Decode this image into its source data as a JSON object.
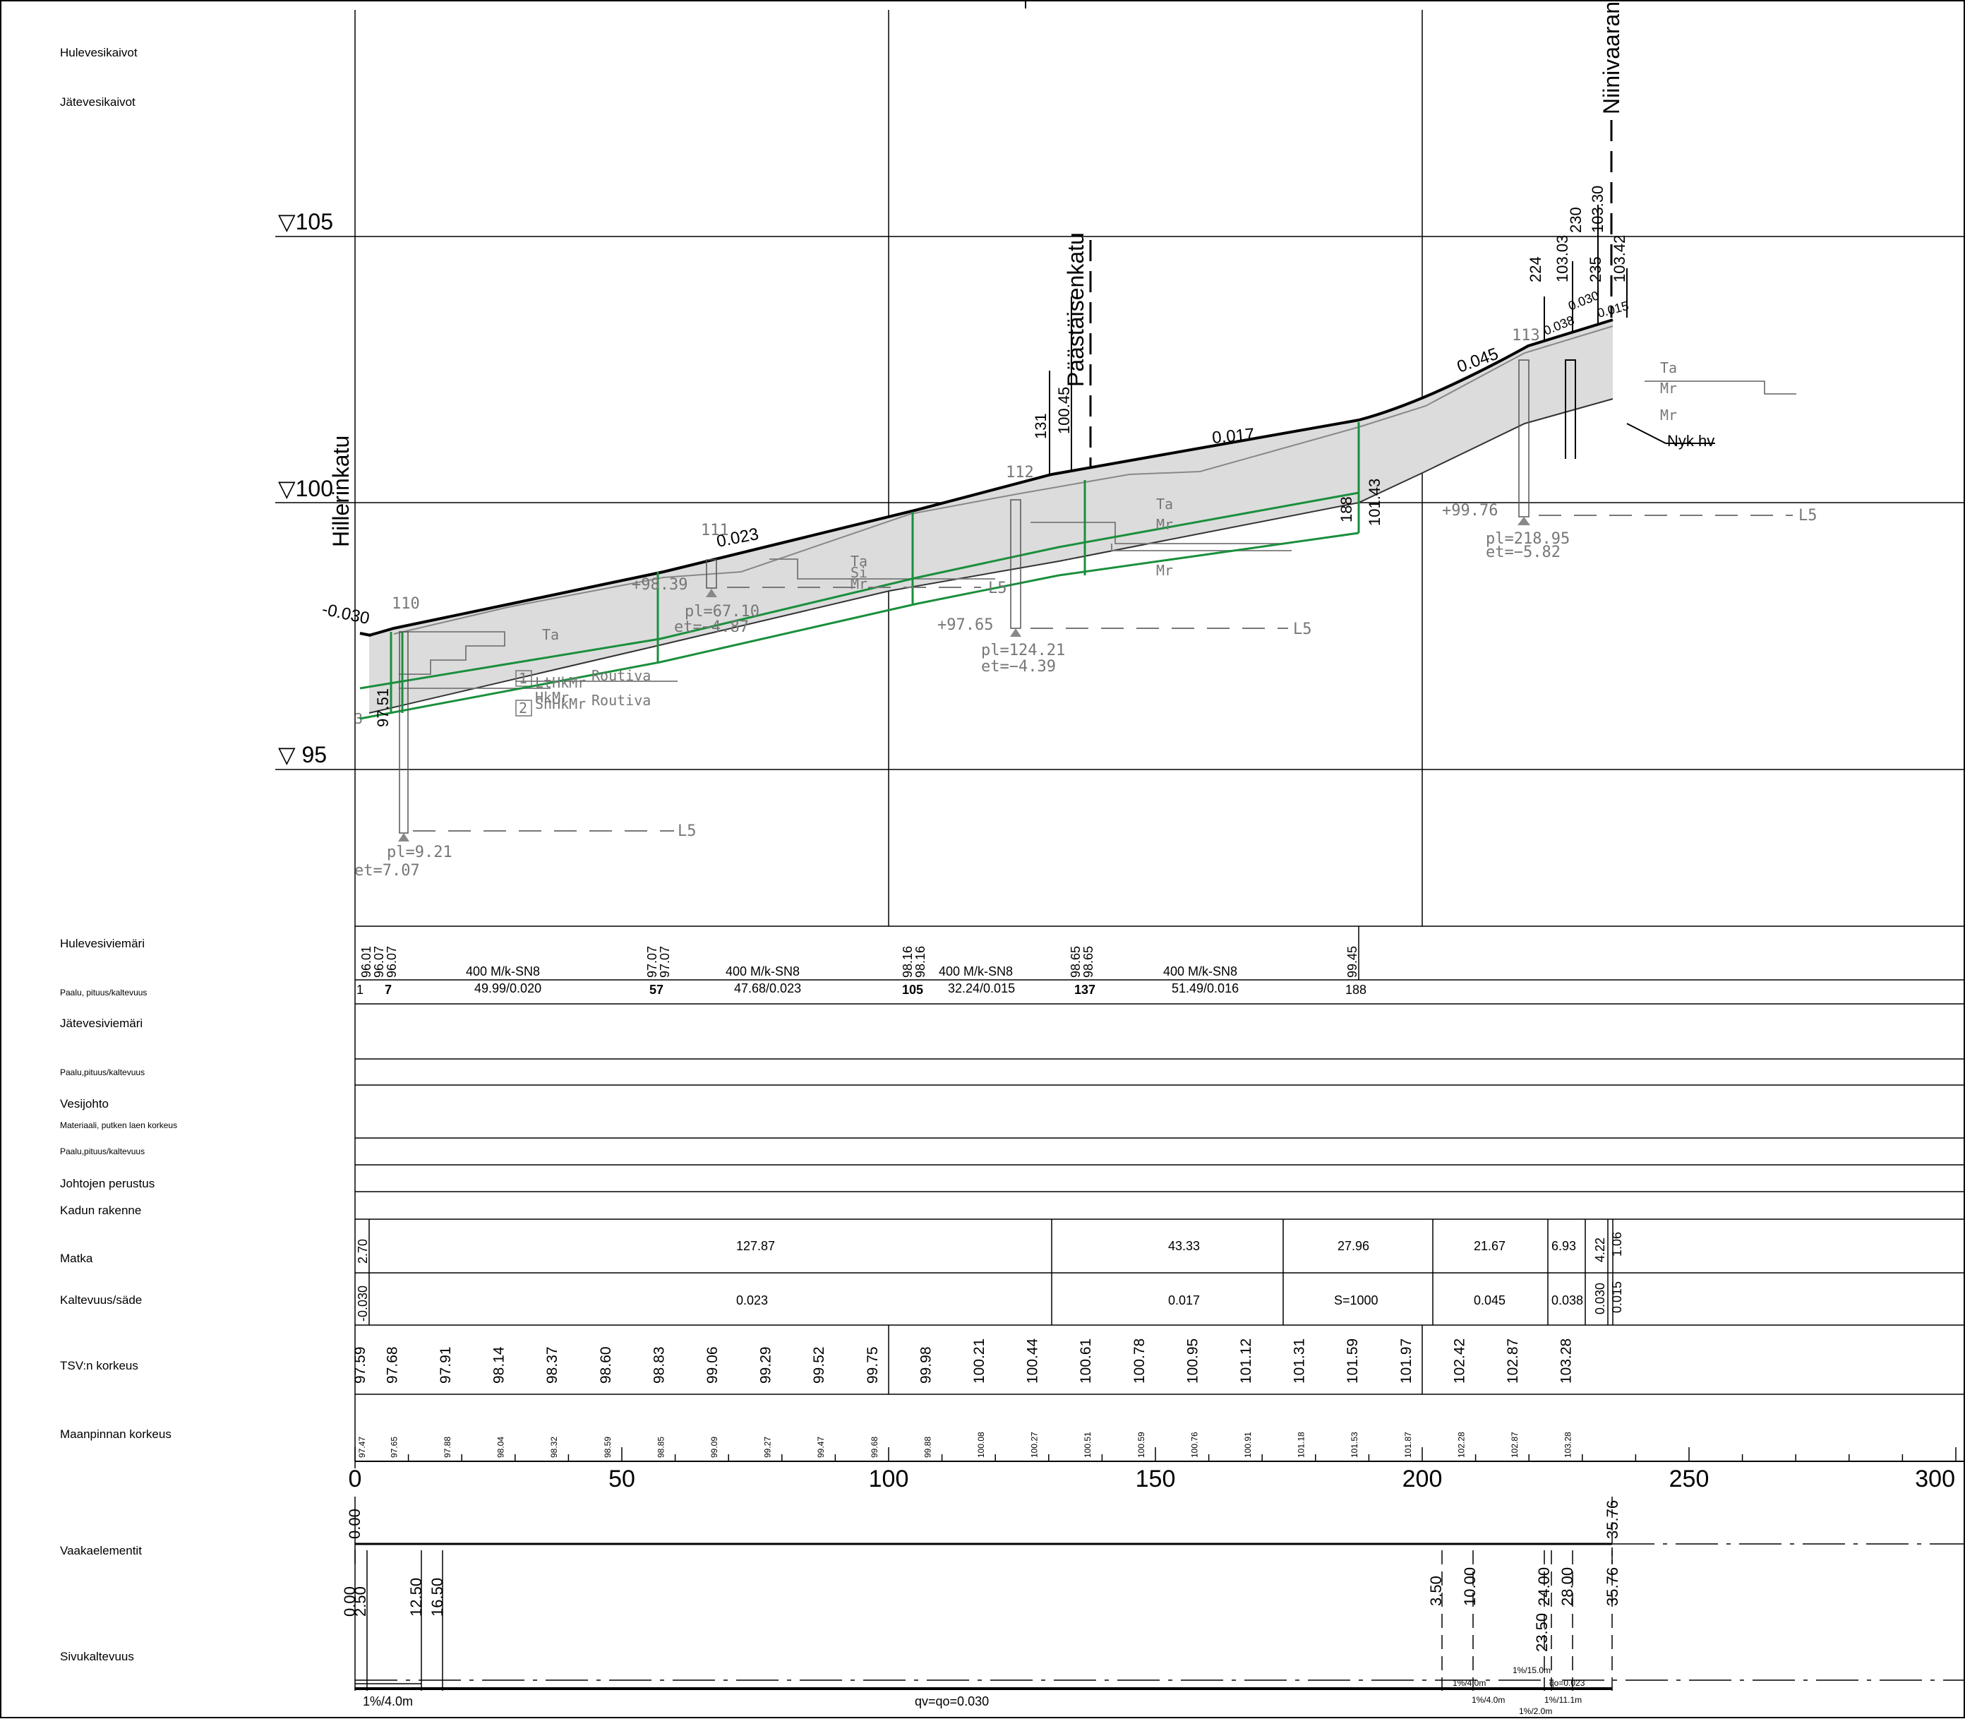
{
  "left_labels": {
    "hulevesikaivot": "Hulevesikaivot",
    "jatevesikaivot": "Jätevesikaivot",
    "hulevesiviemari": "Hulevesiviemäri",
    "paalu1": "Paalu, pituus/kaltevuus",
    "jatevesiviemari": "Jätevesiviemäri",
    "paalu2": "Paalu,pituus/kaltevuus",
    "vesijohto": "Vesijohto",
    "materiaali": "Materiaali, putken laen korkeus",
    "paalu3": "Paalu,pituus/kaltevuus",
    "perustus": "Johtojen perustus",
    "rakenne": "Kadun rakenne",
    "matka": "Matka",
    "kaltevuus": "Kaltevuus/säde",
    "tsv": "TSV:n korkeus",
    "maanpinta": "Maanpinnan korkeus",
    "vaaka": "Vaakaelementit",
    "sivu": "Sivukaltevuus"
  },
  "elevations": {
    "e105": "▽105",
    "e100": "▽100",
    "e95": "▽  95"
  },
  "streets": {
    "hiller": "Hillerinkatu",
    "paast": "Päästäisenkatu",
    "niini": "Niinivaarantie"
  },
  "profile_labels": {
    "st110": "110",
    "st111": "111",
    "st112": "112",
    "st113": "113",
    "s1": "-0.030",
    "s2": "0.023",
    "s3": "0.017",
    "s4": "0.045",
    "s5": "0.038",
    "s6": "0.030",
    "s7": "0.015",
    "h131": "131",
    "h10045": "100.45",
    "h224": "224",
    "h10303": "103.03",
    "h230": "230",
    "h10330": "103.30",
    "h235": "235",
    "h10342": "103.42",
    "h188": "188",
    "h10143": "101.43",
    "h9751": "97.51",
    "b1": "+98.39",
    "b1pl": "pl=67.10",
    "b1et": "et=−4.87",
    "b2": "+97.65",
    "b2pl": "pl=124.21",
    "b2et": "et=−4.39",
    "b3": "+99.76",
    "b3pl": "pl=218.95",
    "b3et": "et=−5.82",
    "b4pl": "pl=9.21",
    "b4et": "et=7.07",
    "l5": "L5",
    "ta": "Ta",
    "mr": "Mr",
    "si": "Si",
    "routiva": "Routiva",
    "lthkmr": "LtHkMr",
    "hkmr": "HkMr",
    "shhkmr": "ShHkMr",
    "nyk": "Nyk hv",
    "n1": "1",
    "n2": "2",
    "n3": "3"
  },
  "sewer": {
    "wells": [
      {
        "vals": [
          "96.01",
          "96.07",
          "96.07"
        ],
        "station": "7"
      },
      {
        "vals": [
          "97.07",
          "97.07"
        ],
        "station": "57"
      },
      {
        "vals": [
          "98.16",
          "98.16"
        ],
        "station": "105"
      },
      {
        "vals": [
          "98.65",
          "98.65"
        ],
        "station": "137"
      },
      {
        "vals": [
          "99.45"
        ],
        "station": "188"
      }
    ],
    "start": "1",
    "pipes": [
      {
        "type": "400 M/k-SN8",
        "len": "49.99/0.020"
      },
      {
        "type": "400 M/k-SN8",
        "len": "47.68/0.023"
      },
      {
        "type": "400 M/k-SN8",
        "len": "32.24/0.015"
      },
      {
        "type": "400 M/k-SN8",
        "len": "51.49/0.016"
      }
    ]
  },
  "matka": [
    "2.70",
    "127.87",
    "43.33",
    "27.96",
    "21.67",
    "6.93",
    "4.22",
    "1.06"
  ],
  "kaltevuus": [
    "-0.030",
    "0.023",
    "0.017",
    "S=1000",
    "0.045",
    "0.038",
    "0.030",
    "0.015"
  ],
  "tsv": [
    "97.59",
    "97.68",
    "97.91",
    "98.14",
    "98.37",
    "98.60",
    "98.83",
    "99.06",
    "99.29",
    "99.52",
    "99.75",
    "99.98",
    "100.21",
    "100.44",
    "100.61",
    "100.78",
    "100.95",
    "101.12",
    "101.31",
    "101.59",
    "101.97",
    "102.42",
    "102.87",
    "103.28"
  ],
  "ground": [
    "97.47",
    "97.65",
    "97.88",
    "98.04",
    "98.32",
    "98.59",
    "98.85",
    "99.09",
    "99.27",
    "99.47",
    "99.68",
    "99.88",
    "100.08",
    "100.27",
    "100.51",
    "100.59",
    "100.76",
    "100.91",
    "101.18",
    "101.53",
    "101.87",
    "102.28",
    "102.87",
    "103.28"
  ],
  "axis_ticks": [
    "0",
    "50",
    "100",
    "150",
    "200",
    "250",
    "300"
  ],
  "vaaka": {
    "a0": "0.00",
    "a3576": "35.76"
  },
  "sivu_labels": [
    "0.00",
    "2.50",
    "12.50",
    "16.50",
    "3.50",
    "10.00",
    "24.00",
    "28.00",
    "35.76",
    "23.50"
  ],
  "sivu_texts": {
    "t1": "1%/4.0m",
    "t2": "qv=qo=0.030",
    "t3": "1%/15.0m",
    "t4": "1%/4.0m",
    "t5": "qo=0.023",
    "t6": "1%/4.0m",
    "t7": "1%/11.1m",
    "t8": "1%/2.0m"
  }
}
